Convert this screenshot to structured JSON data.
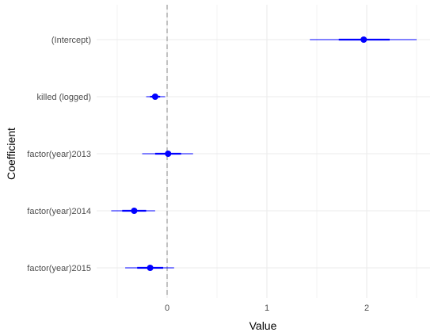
{
  "chart_data": {
    "type": "coefficient-plot",
    "xlabel": "Value",
    "ylabel": "Coefficient",
    "xlim": [
      -0.5,
      2.5
    ],
    "x_ticks": [
      0,
      1,
      2
    ],
    "x_tick_labels": [
      "0",
      "1",
      "2"
    ],
    "grid": true,
    "reference_line": 0,
    "colors": {
      "estimate": "#0000ff",
      "reference": "#b3b3b3",
      "grid": "#ebebeb"
    },
    "coefficients": [
      {
        "label": "(Intercept)",
        "estimate": 1.97,
        "inner": [
          1.72,
          2.23
        ],
        "outer": [
          1.43,
          2.5
        ]
      },
      {
        "label": "killed (logged)",
        "estimate": -0.12,
        "inner": [
          -0.17,
          -0.07
        ],
        "outer": [
          -0.21,
          -0.02
        ]
      },
      {
        "label": "factor(year)2013",
        "estimate": 0.01,
        "inner": [
          -0.12,
          0.14
        ],
        "outer": [
          -0.25,
          0.26
        ]
      },
      {
        "label": "factor(year)2014",
        "estimate": -0.33,
        "inner": [
          -0.45,
          -0.21
        ],
        "outer": [
          -0.56,
          -0.12
        ]
      },
      {
        "label": "factor(year)2015",
        "estimate": -0.17,
        "inner": [
          -0.3,
          -0.04
        ],
        "outer": [
          -0.42,
          0.07
        ]
      }
    ]
  }
}
